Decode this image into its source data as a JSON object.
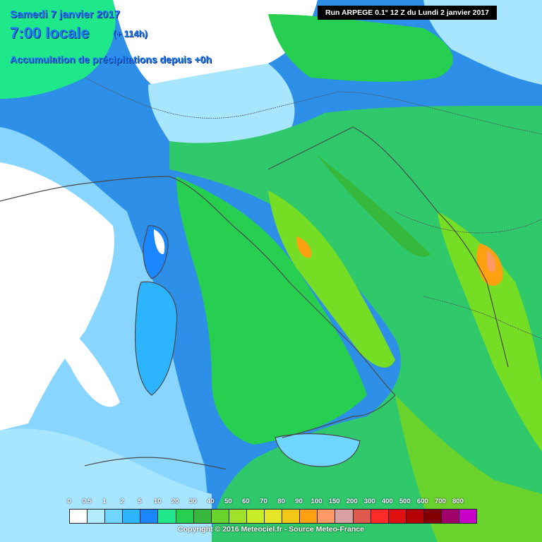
{
  "header": {
    "date": "Samedi 7 janvier 2017",
    "time": "7:00 locale",
    "step": "(+ 114h)",
    "subtitle": "Accumulation de précipitations depuis +0h",
    "run_info": "Run ARPEGE 0.1° 12 Z du Lundi 2 janvier 2017"
  },
  "legend": {
    "labels": [
      "0",
      "0.5",
      "1",
      "2",
      "5",
      "10",
      "20",
      "30",
      "40",
      "50",
      "60",
      "70",
      "80",
      "90",
      "100",
      "150",
      "200",
      "300",
      "400",
      "500",
      "600",
      "700",
      "800"
    ],
    "colors": [
      "#ffffff",
      "#b4ecff",
      "#6ed6ff",
      "#2db4ff",
      "#1a86ff",
      "#1ee88a",
      "#26cf50",
      "#36b83c",
      "#6ad22c",
      "#9ee22a",
      "#c8ee2a",
      "#e6e628",
      "#f2c818",
      "#ffa010",
      "#ff9a66",
      "#d8a0a0",
      "#e05a50",
      "#ff2a2a",
      "#e01010",
      "#b40000",
      "#820000",
      "#a0006a",
      "#c800c8"
    ]
  },
  "copyright": "Copyright © 2016 Meteociel.fr - Source Meteo-France",
  "colors": {
    "sea_low": "#2e8fe8",
    "land_base": "#2fc86a",
    "land_high": "#74dd24",
    "dry": "#ffffff",
    "light": "#a8e6ff"
  }
}
